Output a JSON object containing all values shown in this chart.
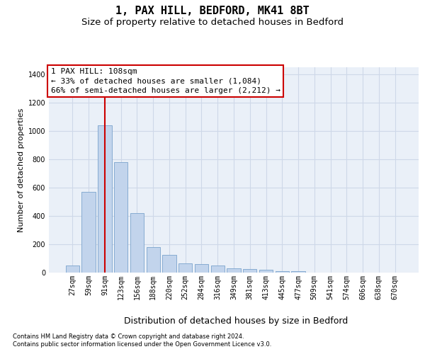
{
  "title": "1, PAX HILL, BEDFORD, MK41 8BT",
  "subtitle": "Size of property relative to detached houses in Bedford",
  "xlabel": "Distribution of detached houses by size in Bedford",
  "ylabel": "Number of detached properties",
  "footnote1": "Contains HM Land Registry data © Crown copyright and database right 2024.",
  "footnote2": "Contains public sector information licensed under the Open Government Licence v3.0.",
  "bar_labels": [
    "27sqm",
    "59sqm",
    "91sqm",
    "123sqm",
    "156sqm",
    "188sqm",
    "220sqm",
    "252sqm",
    "284sqm",
    "316sqm",
    "349sqm",
    "381sqm",
    "413sqm",
    "445sqm",
    "477sqm",
    "509sqm",
    "541sqm",
    "574sqm",
    "606sqm",
    "638sqm",
    "670sqm"
  ],
  "bar_values": [
    50,
    570,
    1040,
    780,
    420,
    180,
    125,
    65,
    60,
    50,
    30,
    25,
    20,
    10,
    8,
    0,
    0,
    0,
    0,
    0,
    0
  ],
  "bar_color": "#c2d4ec",
  "bar_edge_color": "#7ba3cc",
  "grid_color": "#ced8e8",
  "background_color": "#eaf0f8",
  "vline_color": "#cc0000",
  "vline_bar_index": 2,
  "annotation_text": "1 PAX HILL: 108sqm\n← 33% of detached houses are smaller (1,084)\n66% of semi-detached houses are larger (2,212) →",
  "annotation_box_edgecolor": "#cc0000",
  "ylim": [
    0,
    1450
  ],
  "yticks": [
    0,
    200,
    400,
    600,
    800,
    1000,
    1200,
    1400
  ],
  "title_fontsize": 11,
  "subtitle_fontsize": 9.5,
  "ylabel_fontsize": 8,
  "xlabel_fontsize": 9,
  "tick_fontsize": 7,
  "annotation_fontsize": 8,
  "footnote_fontsize": 6
}
